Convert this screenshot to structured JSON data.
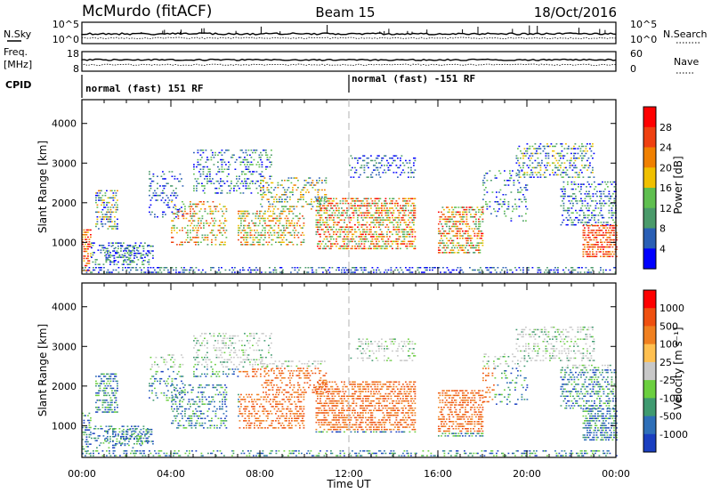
{
  "header": {
    "station": "McMurdo (fitACF)",
    "beam": "Beam 15",
    "date": "18/Oct/2016"
  },
  "strip_labels": {
    "nsky": "N.Sky",
    "nsky_ticks": [
      "10^5",
      "10^0"
    ],
    "nsearch": "N.Search",
    "nsearch_ticks": [
      "10^5",
      "10^0"
    ],
    "freq": "Freq.",
    "freq_unit": "[MHz]",
    "freq_ticks": [
      "18",
      "8"
    ],
    "nave": "Nave",
    "nave_ticks": [
      "60",
      "0"
    ],
    "cpid": "CPID",
    "cpid_segments": [
      "normal (fast) 151 RF",
      "normal (fast) -151 RF"
    ]
  },
  "chart_data": [
    {
      "type": "heatmap",
      "name": "power-panel",
      "xlabel": "",
      "ylabel": "Slant Range [km]",
      "y_ticks": [
        "1000",
        "2000",
        "3000",
        "4000"
      ],
      "ylim": [
        200,
        4600
      ],
      "xlim": [
        0,
        24
      ],
      "colorbar_title": "Power [dB]",
      "colorbar_labels": [
        "4",
        "8",
        "12",
        "16",
        "20",
        "24",
        "28"
      ],
      "colors": [
        "#0000ff",
        "#2a5fb5",
        "#4a9a6a",
        "#5fbf4f",
        "#f0c000",
        "#f08000",
        "#ef4010",
        "#ff0000"
      ]
    },
    {
      "type": "heatmap",
      "name": "velocity-panel",
      "xlabel": "Time UT",
      "ylabel": "Slant Range [km]",
      "x_ticks": [
        "00:00",
        "04:00",
        "08:00",
        "12:00",
        "16:00",
        "20:00",
        "00:00"
      ],
      "y_ticks": [
        "1000",
        "2000",
        "3000",
        "4000"
      ],
      "ylim": [
        200,
        4600
      ],
      "xlim": [
        0,
        24
      ],
      "colorbar_title": "Velocity [m s⁻¹]",
      "colorbar_labels": [
        "1000",
        "500",
        "100",
        "25",
        "-25",
        "-100",
        "-500",
        "-1000"
      ],
      "colors": [
        "#1a3fc0",
        "#2e6fb8",
        "#3f9a70",
        "#6bcf3f",
        "#c8c8c8",
        "#ffc050",
        "#f08020",
        "#ef5010",
        "#ff0000"
      ]
    }
  ]
}
